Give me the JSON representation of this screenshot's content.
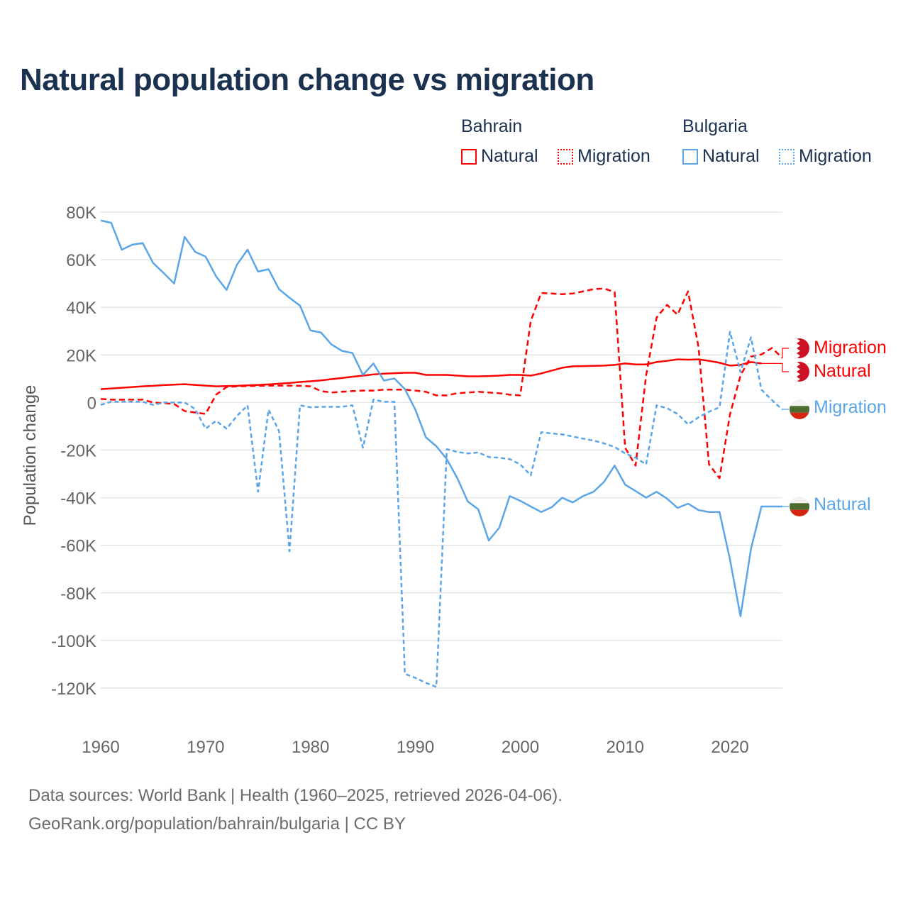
{
  "title": "Natural population change vs migration",
  "legend": {
    "groups": [
      {
        "name": "Bahrain",
        "items": [
          {
            "label": "Natural",
            "style": "solid"
          },
          {
            "label": "Migration",
            "style": "dotted"
          }
        ],
        "color": "#ff0000"
      },
      {
        "name": "Bulgaria",
        "items": [
          {
            "label": "Natural",
            "style": "solid"
          },
          {
            "label": "Migration",
            "style": "dotted"
          }
        ],
        "color": "#5aa5e8"
      }
    ]
  },
  "end_labels": [
    {
      "text": "Migration",
      "series": "bahrain_migration",
      "color": "#ff0000"
    },
    {
      "text": "Natural",
      "series": "bahrain_natural",
      "color": "#ff0000"
    },
    {
      "text": "Migration",
      "series": "bulgaria_migration",
      "color": "#5aa5e8"
    },
    {
      "text": "Natural",
      "series": "bulgaria_natural",
      "color": "#5aa5e8"
    }
  ],
  "footer": {
    "line1": "Data sources: World Bank | Health (1960–2025, retrieved 2026-04-06).",
    "line2": "GeoRank.org/population/bahrain/bulgaria | CC BY"
  },
  "chart_data": {
    "type": "line",
    "title": "Natural population change vs migration",
    "xlabel": "",
    "ylabel": "Population change",
    "xlim": [
      1960,
      2025
    ],
    "ylim": [
      -120000,
      80000
    ],
    "grid": true,
    "legend_position": "top-right",
    "x_ticks": [
      1960,
      1970,
      1980,
      1990,
      2000,
      2010,
      2020
    ],
    "x_tick_labels": [
      "1960",
      "1970",
      "1980",
      "1990",
      "2000",
      "2010",
      "2020"
    ],
    "y_ticks": [
      80000,
      60000,
      40000,
      20000,
      0,
      -20000,
      -40000,
      -60000,
      -80000,
      -100000,
      -120000
    ],
    "y_tick_labels": [
      "80K",
      "60K",
      "40K",
      "20K",
      "0",
      "-20K",
      "-40K",
      "-60K",
      "-80K",
      "-100K",
      "-120K"
    ],
    "x_start": 1960,
    "series": [
      {
        "key": "bahrain_natural",
        "name": "Bahrain Natural",
        "color": "#ff0000",
        "dash": "",
        "values": [
          5.6,
          5.9,
          6.2,
          6.5,
          6.8,
          7.0,
          7.3,
          7.5,
          7.7,
          7.4,
          7.1,
          6.8,
          6.9,
          7.0,
          7.2,
          7.4,
          7.6,
          7.9,
          8.2,
          8.6,
          8.9,
          9.3,
          9.8,
          10.3,
          10.8,
          11.3,
          11.8,
          12.1,
          12.3,
          12.5,
          12.5,
          11.6,
          11.6,
          11.6,
          11.3,
          11.0,
          11.0,
          11.1,
          11.3,
          11.6,
          11.6,
          11.3,
          12.2,
          13.4,
          14.6,
          15.2,
          15.3,
          15.4,
          15.5,
          15.8,
          16.4,
          16.0,
          16.0,
          17.0,
          17.5,
          18.1,
          18.0,
          18.1,
          17.5,
          16.7,
          15.5,
          15.8,
          17.0,
          16.4
        ],
        "unit": "thousands"
      },
      {
        "key": "bahrain_migration",
        "name": "Bahrain Migration",
        "color": "#ff0000",
        "dash": "8,5",
        "values": [
          1.5,
          1.2,
          1.2,
          1.2,
          1.2,
          0,
          -0.3,
          -0.6,
          -3.6,
          -4.2,
          -4.8,
          3.3,
          6.5,
          6.8,
          6.9,
          7.0,
          7.1,
          7.1,
          7.1,
          7.0,
          6.8,
          4.8,
          4.2,
          4.5,
          4.8,
          5.0,
          5.0,
          5.4,
          5.4,
          5.4,
          5.0,
          4.5,
          3.0,
          3.0,
          3.9,
          4.2,
          4.5,
          4.2,
          3.9,
          3.3,
          3.0,
          34.2,
          46.0,
          45.8,
          45.5,
          45.8,
          46.7,
          47.6,
          47.9,
          46.4,
          -19.0,
          -26.5,
          11.3,
          35.7,
          41.0,
          36.9,
          46.7,
          23.2,
          -26.0,
          -31.8,
          -5.0,
          11.3,
          19.3,
          20.2,
          22.9,
          18.7
        ],
        "unit": "thousands"
      },
      {
        "key": "bulgaria_natural",
        "name": "Bulgaria Natural",
        "color": "#5aa5e8",
        "dash": "",
        "values": [
          76.5,
          75.5,
          64.2,
          66.3,
          67.0,
          58.6,
          54.4,
          50.0,
          69.6,
          63.3,
          61.3,
          53.0,
          47.3,
          58.0,
          64.2,
          55.0,
          56.0,
          47.6,
          44.0,
          40.7,
          30.3,
          29.4,
          24.4,
          21.7,
          20.8,
          11.6,
          16.4,
          9.2,
          10.1,
          5.6,
          -3.0,
          -14.6,
          -18.4,
          -23.8,
          -31.8,
          -41.6,
          -44.9,
          -58.0,
          -52.6,
          -39.3,
          -41.3,
          -43.7,
          -46.0,
          -44.0,
          -40.0,
          -42.0,
          -39.3,
          -37.5,
          -33.3,
          -26.5,
          -34.5,
          -37.2,
          -40.0,
          -37.5,
          -40.4,
          -44.3,
          -42.5,
          -45.2,
          -46.0,
          -46.0,
          -66.0,
          -89.8,
          -61.5,
          -43.7,
          -43.7,
          -43.7
        ],
        "unit": "thousands"
      },
      {
        "key": "bulgaria_migration",
        "name": "Bulgaria Migration",
        "color": "#5aa5e8",
        "dash": "6,4",
        "values": [
          -1.0,
          0.3,
          0.3,
          0.3,
          0.3,
          -1.0,
          0,
          0,
          0,
          -2.7,
          -11.0,
          -7.7,
          -11.0,
          -5.6,
          -1.2,
          -37.5,
          -3.0,
          -12.0,
          -62.5,
          -1.2,
          -2.0,
          -1.8,
          -1.8,
          -1.8,
          -1.2,
          -19.0,
          1.2,
          0.3,
          0.3,
          -114.0,
          -115.7,
          -117.8,
          -119.5,
          -19.6,
          -20.8,
          -21.4,
          -21.0,
          -22.9,
          -23.2,
          -23.8,
          -26.0,
          -30.6,
          -12.5,
          -13.0,
          -13.4,
          -14.3,
          -15.2,
          -16.0,
          -17.2,
          -18.7,
          -21.4,
          -23.2,
          -26.0,
          -1.2,
          -2.4,
          -4.8,
          -9.2,
          -6.2,
          -3.9,
          -2.0,
          29.7,
          12.8,
          27.4,
          5.4,
          1.0,
          -3.0
        ],
        "unit": "thousands"
      }
    ]
  }
}
